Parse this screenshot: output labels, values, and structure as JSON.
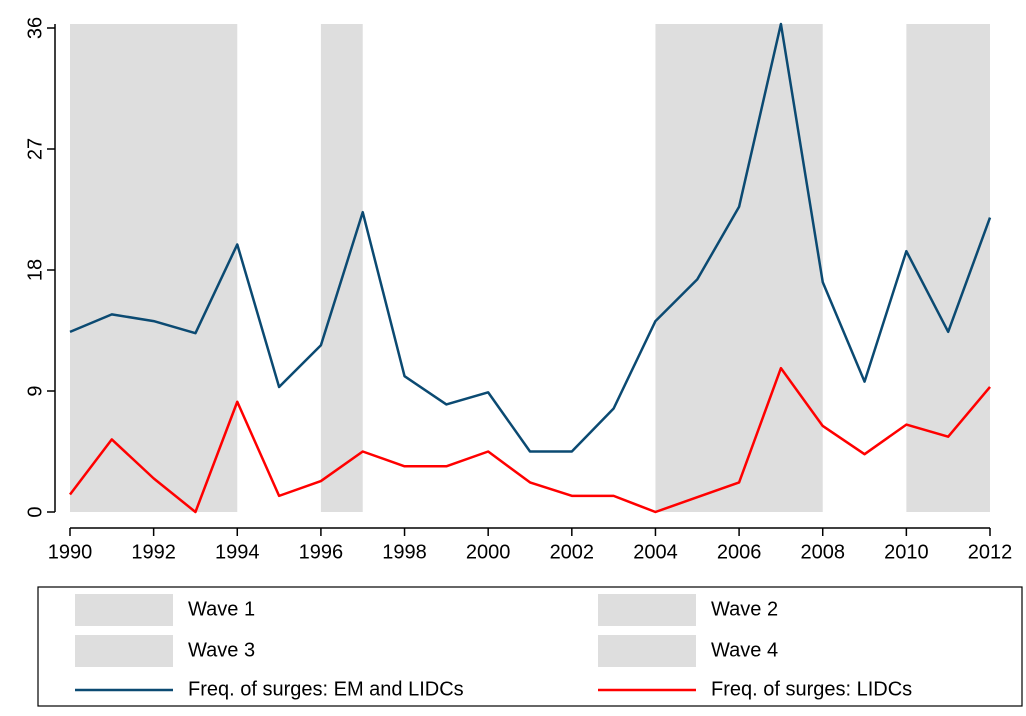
{
  "chart_data": {
    "type": "line",
    "x": [
      1990,
      1991,
      1992,
      1993,
      1994,
      1995,
      1996,
      1997,
      1998,
      1999,
      2000,
      2001,
      2002,
      2003,
      2004,
      2005,
      2006,
      2007,
      2008,
      2009,
      2010,
      2011,
      2012
    ],
    "series": [
      {
        "name": "Freq. of surges: EM and LIDCs",
        "color": "#0b4a72",
        "values": [
          13.4,
          14.7,
          14.2,
          13.3,
          19.9,
          9.3,
          12.4,
          22.3,
          10.1,
          8.0,
          8.9,
          4.5,
          4.5,
          7.7,
          14.2,
          17.3,
          22.7,
          36.3,
          17.1,
          9.7,
          19.4,
          13.4,
          21.9
        ]
      },
      {
        "name": "Freq. of surges: LIDCs",
        "color": "#ff0000",
        "values": [
          1.3,
          5.4,
          2.5,
          0,
          8.2,
          1.2,
          2.3,
          4.5,
          3.4,
          3.4,
          4.5,
          2.2,
          1.2,
          1.2,
          0,
          1.1,
          2.2,
          10.7,
          6.4,
          4.3,
          6.5,
          5.6,
          9.3
        ]
      }
    ],
    "bands": [
      {
        "name": "Wave 1",
        "start": 1990,
        "end": 1994,
        "color": "#dedede"
      },
      {
        "name": "Wave 2",
        "start": 1996,
        "end": 1997,
        "color": "#dedede"
      },
      {
        "name": "Wave 3",
        "start": 2004,
        "end": 2008,
        "color": "#dedede"
      },
      {
        "name": "Wave 4",
        "start": 2010,
        "end": 2012,
        "color": "#dedede"
      }
    ],
    "xlim": [
      1990,
      2012
    ],
    "xticks": [
      1990,
      1992,
      1994,
      1996,
      1998,
      2000,
      2002,
      2004,
      2006,
      2008,
      2010,
      2012
    ],
    "ylim": [
      0,
      36
    ],
    "yticks": [
      0,
      9,
      18,
      27,
      36
    ],
    "grid": false,
    "legend": "bottom"
  }
}
